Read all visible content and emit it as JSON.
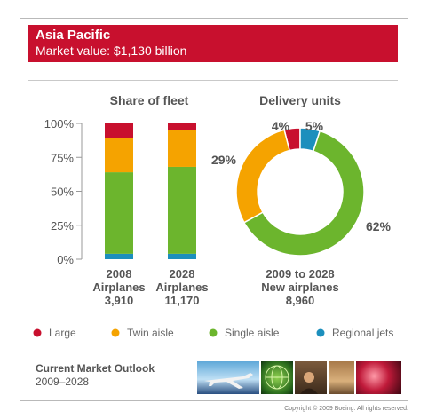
{
  "banner": {
    "title": "Asia Pacific",
    "subtitle": "Market value: $1,130 billion"
  },
  "footer": {
    "title": "Current Market Outlook",
    "years": "2009–2028",
    "copyright": "Copyright © 2009 Boeing. All rights reserved."
  },
  "colors": {
    "large": "#c8102e",
    "twin_aisle": "#f5a300",
    "single_aisle": "#6cb52d",
    "regional_jets": "#1c8fbd",
    "banner": "#c8102e"
  },
  "chart_data": [
    {
      "type": "bar",
      "stacked": true,
      "title": "Share of fleet",
      "yticks": [
        "100%",
        "75%",
        "50%",
        "25%",
        "0%"
      ],
      "ylim": [
        0,
        100
      ],
      "categories": [
        {
          "label": [
            "2008",
            "Airplanes",
            "3,910"
          ]
        },
        {
          "label": [
            "2028",
            "Airplanes",
            "11,170"
          ]
        }
      ],
      "series": [
        {
          "name": "Regional jets",
          "values": [
            4,
            4
          ]
        },
        {
          "name": "Single aisle",
          "values": [
            60,
            64
          ]
        },
        {
          "name": "Twin aisle",
          "values": [
            25,
            27
          ]
        },
        {
          "name": "Large",
          "values": [
            11,
            5
          ]
        }
      ]
    },
    {
      "type": "pie",
      "donut": true,
      "title": "Delivery units",
      "caption": [
        "2009 to 2028",
        "New airplanes",
        "8,960"
      ],
      "slices": [
        {
          "name": "Large",
          "value": 4,
          "label": "4%"
        },
        {
          "name": "Regional jets",
          "value": 5,
          "label": "5%"
        },
        {
          "name": "Single aisle",
          "value": 62,
          "label": "62%"
        },
        {
          "name": "Twin aisle",
          "value": 29,
          "label": "29%"
        }
      ]
    }
  ],
  "legend": [
    {
      "name": "Large"
    },
    {
      "name": "Twin aisle"
    },
    {
      "name": "Single aisle"
    },
    {
      "name": "Regional jets"
    }
  ]
}
